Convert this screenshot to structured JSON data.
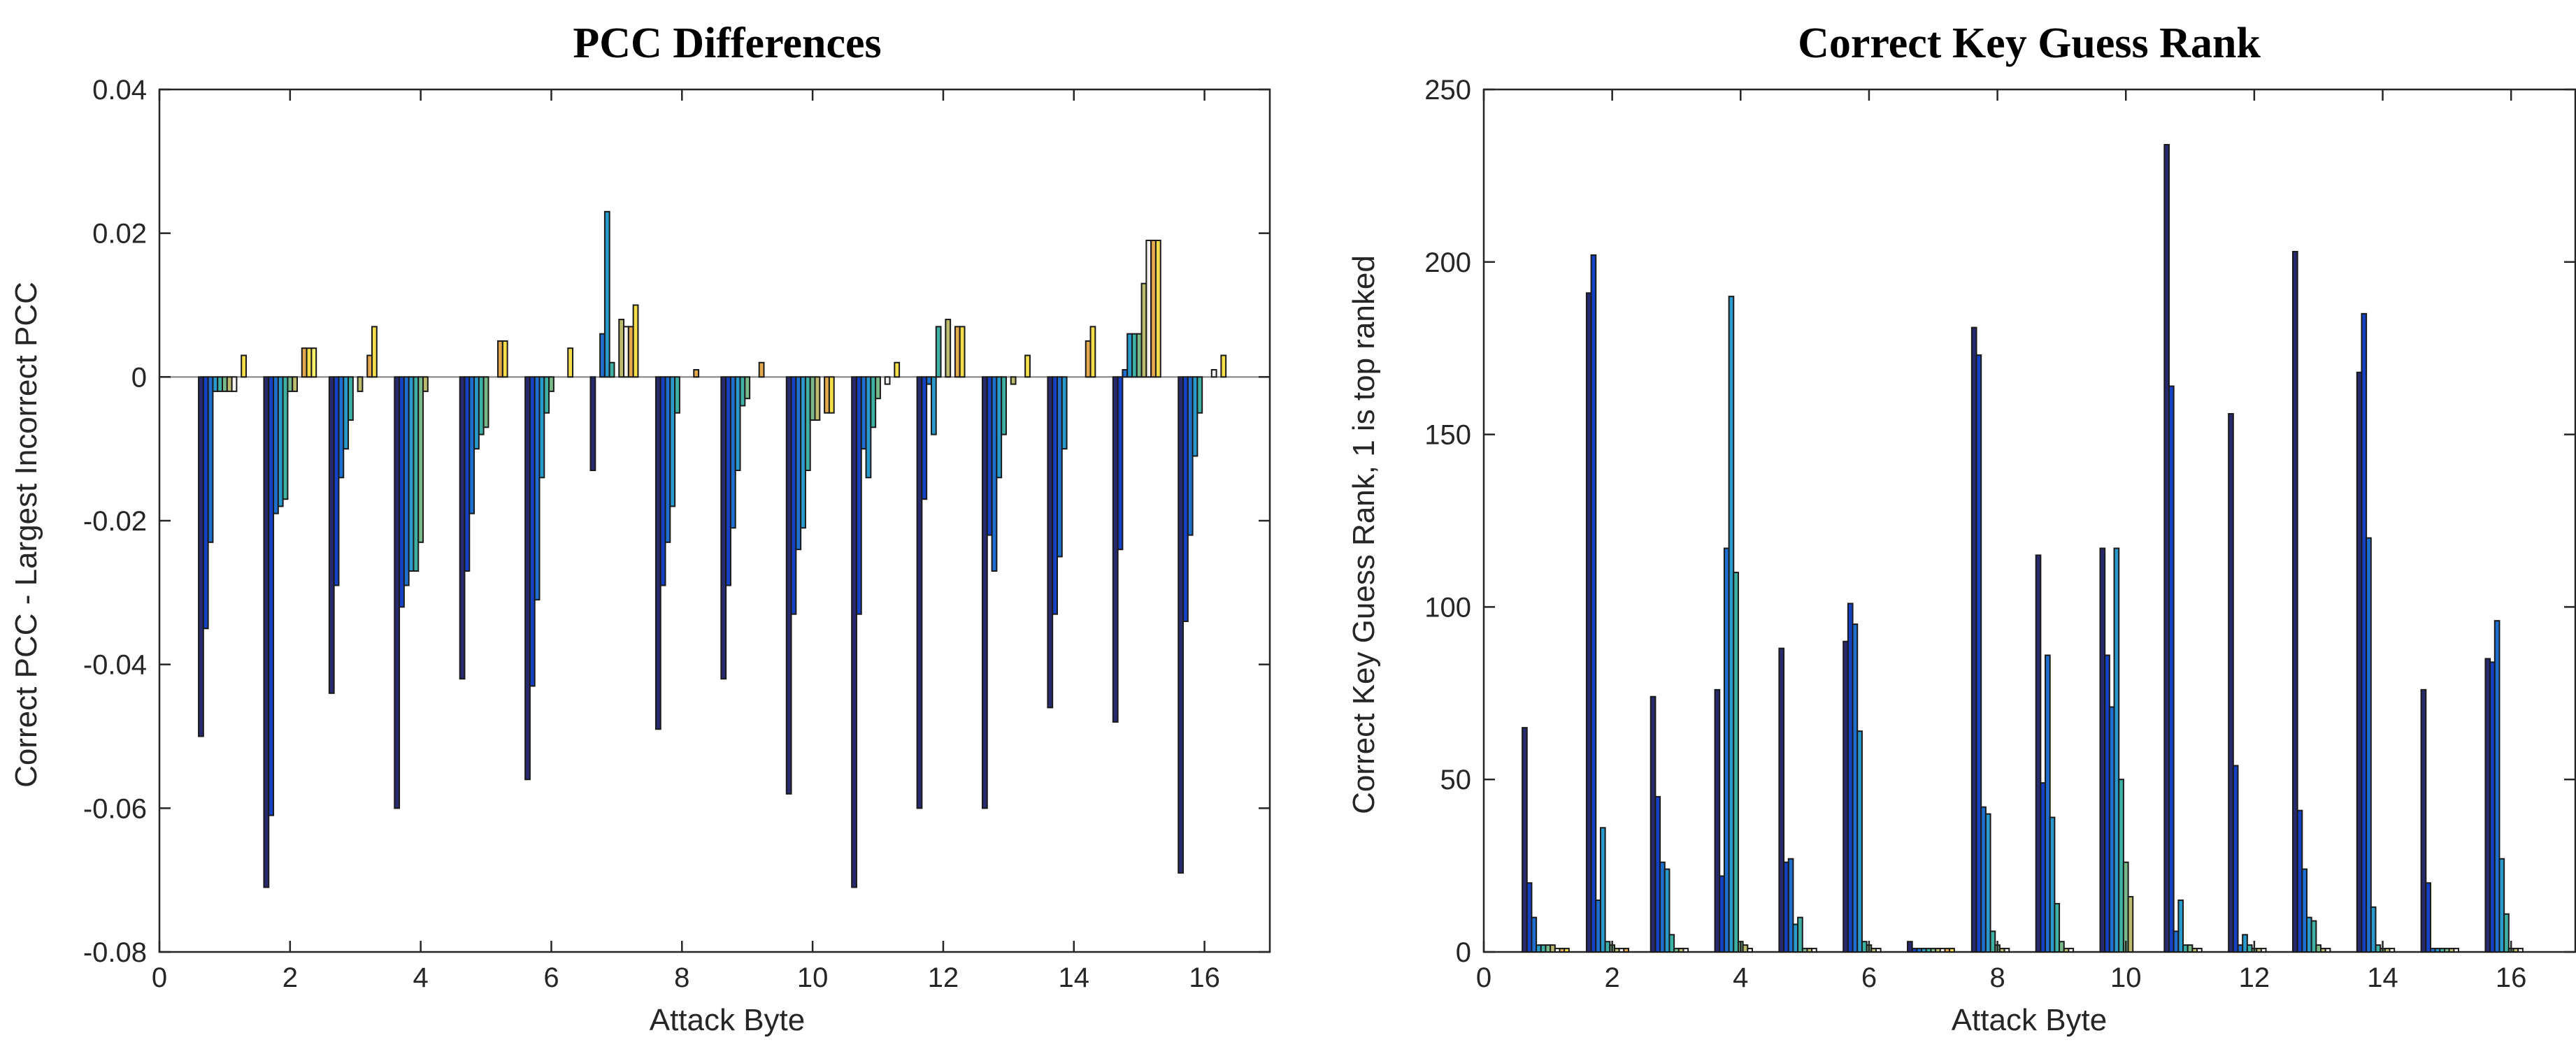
{
  "colors": [
    "#282a6e",
    "#1541c4",
    "#1e6fd0",
    "#2a99cc",
    "#3fb1a4",
    "#7ab98a",
    "#bdbc6e",
    "#f5f3f0",
    "#e3a94c",
    "#f4de4a",
    "#f7f26a"
  ],
  "chart_data": [
    {
      "type": "bar",
      "title": "PCC Differences",
      "xlabel": "Attack Byte",
      "ylabel": "Correct PCC - Largest Incorrect PCC",
      "xlim": [
        0,
        17
      ],
      "ylim": [
        -0.08,
        0.04
      ],
      "xticks": [
        0,
        2,
        4,
        6,
        8,
        10,
        12,
        14,
        16
      ],
      "yticks": [
        -0.08,
        -0.06,
        -0.04,
        -0.02,
        0,
        0.02,
        0.04
      ],
      "ytick_labels": [
        "-0.08",
        "-0.06",
        "-0.04",
        "-0.02",
        "0",
        "0.02",
        "0.04"
      ],
      "categories": [
        1,
        2,
        3,
        4,
        5,
        6,
        7,
        8,
        9,
        10,
        11,
        12,
        13,
        14,
        15,
        16
      ],
      "values_by_category": [
        [
          -0.05,
          -0.035,
          -0.023,
          -0.002,
          -0.002,
          -0.002,
          -0.002,
          -0.002,
          0.0,
          0.003,
          0.0
        ],
        [
          -0.071,
          -0.061,
          -0.019,
          -0.018,
          -0.017,
          -0.002,
          -0.002,
          0.0,
          0.004,
          0.004,
          0.004
        ],
        [
          -0.044,
          -0.029,
          -0.014,
          -0.01,
          -0.006,
          0.0,
          -0.002,
          0.0,
          0.003,
          0.007,
          0.0
        ],
        [
          -0.06,
          -0.032,
          -0.029,
          -0.027,
          -0.027,
          -0.023,
          -0.002,
          0.0,
          0.0,
          0.0,
          0.0
        ],
        [
          -0.042,
          -0.027,
          -0.019,
          -0.01,
          -0.008,
          -0.007,
          0.0,
          0.0,
          0.005,
          0.005,
          0.0
        ],
        [
          -0.056,
          -0.043,
          -0.031,
          -0.014,
          -0.005,
          -0.002,
          0.0,
          0.0,
          0.0,
          0.004,
          0.0
        ],
        [
          -0.013,
          0.0,
          0.006,
          0.023,
          0.002,
          0.0,
          0.008,
          0.007,
          0.007,
          0.01,
          0.0
        ],
        [
          -0.049,
          -0.029,
          -0.023,
          -0.018,
          -0.005,
          0.0,
          0.0,
          0.0,
          0.001,
          0.0,
          0.0
        ],
        [
          -0.042,
          -0.029,
          -0.021,
          -0.013,
          -0.004,
          -0.003,
          0.0,
          0.0,
          0.002,
          0.0,
          0.0
        ],
        [
          -0.058,
          -0.033,
          -0.024,
          -0.021,
          -0.013,
          -0.006,
          -0.006,
          0.0,
          -0.005,
          -0.005,
          0.0
        ],
        [
          -0.071,
          -0.033,
          -0.01,
          -0.014,
          -0.007,
          -0.003,
          0.0,
          -0.001,
          0.0,
          0.002,
          0.0
        ],
        [
          -0.06,
          -0.017,
          -0.001,
          -0.008,
          0.007,
          0.0,
          0.008,
          0.0,
          0.007,
          0.007,
          0.0
        ],
        [
          -0.06,
          -0.022,
          -0.027,
          -0.014,
          -0.008,
          0.0,
          -0.001,
          0.0,
          0.0,
          0.003,
          0.0
        ],
        [
          -0.046,
          -0.033,
          -0.025,
          -0.01,
          0.0,
          0.0,
          0.0,
          0.0,
          0.005,
          0.007,
          0.0
        ],
        [
          -0.048,
          -0.024,
          0.001,
          0.006,
          0.006,
          0.006,
          0.013,
          0.019,
          0.019,
          0.019,
          0.0
        ],
        [
          -0.069,
          -0.034,
          -0.022,
          -0.011,
          -0.005,
          0.0,
          0.0,
          0.001,
          0.0,
          0.003,
          0.0
        ]
      ]
    },
    {
      "type": "bar",
      "title": "Correct Key Guess Rank",
      "xlabel": "Attack Byte",
      "ylabel": "Correct Key Guess Rank, 1 is top ranked",
      "xlim": [
        0,
        17
      ],
      "ylim": [
        0,
        250
      ],
      "xticks": [
        0,
        2,
        4,
        6,
        8,
        10,
        12,
        14,
        16
      ],
      "yticks": [
        0,
        50,
        100,
        150,
        200,
        250
      ],
      "ytick_labels": [
        "0",
        "50",
        "100",
        "150",
        "200",
        "250"
      ],
      "categories": [
        1,
        2,
        3,
        4,
        5,
        6,
        7,
        8,
        9,
        10,
        11,
        12,
        13,
        14,
        15,
        16
      ],
      "values_by_category": [
        [
          65,
          20,
          10,
          2,
          2,
          2,
          2,
          1,
          1,
          1,
          0
        ],
        [
          191,
          202,
          15,
          36,
          3,
          2,
          1,
          1,
          1,
          0,
          0
        ],
        [
          74,
          45,
          26,
          24,
          5,
          1,
          1,
          1,
          0,
          0,
          0
        ],
        [
          76,
          22,
          117,
          190,
          110,
          3,
          2,
          1,
          0,
          0,
          0
        ],
        [
          88,
          26,
          27,
          8,
          10,
          1,
          1,
          1,
          0,
          0,
          0
        ],
        [
          90,
          101,
          95,
          64,
          3,
          2,
          1,
          1,
          0,
          0,
          0
        ],
        [
          3,
          1,
          1,
          1,
          1,
          1,
          1,
          1,
          1,
          1,
          0
        ],
        [
          181,
          173,
          42,
          40,
          6,
          2,
          1,
          1,
          0,
          0,
          0
        ],
        [
          115,
          49,
          86,
          39,
          14,
          3,
          1,
          1,
          0,
          0,
          0
        ],
        [
          117,
          86,
          71,
          117,
          50,
          26,
          16,
          0,
          0,
          0,
          0
        ],
        [
          234,
          164,
          6,
          15,
          2,
          2,
          1,
          1,
          0,
          0,
          0
        ],
        [
          156,
          54,
          2,
          5,
          2,
          1,
          1,
          1,
          0,
          0,
          0
        ],
        [
          203,
          41,
          24,
          10,
          9,
          2,
          1,
          1,
          0,
          0,
          0
        ],
        [
          168,
          185,
          120,
          13,
          2,
          1,
          1,
          1,
          0,
          0,
          0
        ],
        [
          76,
          20,
          1,
          1,
          1,
          1,
          1,
          1,
          0,
          0,
          0
        ],
        [
          85,
          84,
          96,
          27,
          11,
          1,
          1,
          1,
          0,
          0,
          0
        ]
      ]
    }
  ]
}
